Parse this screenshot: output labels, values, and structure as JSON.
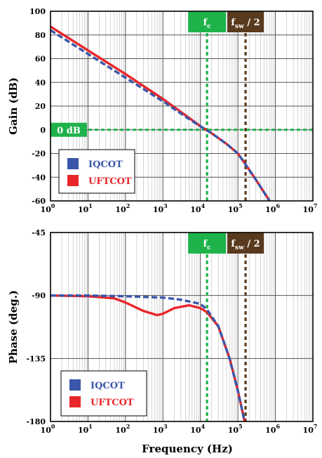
{
  "chart_data": [
    {
      "type": "line",
      "xlabel": "",
      "ylabel": "Gain (dB)",
      "xscale": "log",
      "xlim": [
        1,
        10000000
      ],
      "ylim": [
        -60,
        100
      ],
      "x_tick_bases": [
        "10",
        "10",
        "10",
        "10",
        "10",
        "10",
        "10",
        "10"
      ],
      "x_tick_exponents": [
        "0",
        "1",
        "2",
        "3",
        "4",
        "5",
        "6",
        "7"
      ],
      "y_ticks": [
        "100",
        "80",
        "60",
        "40",
        "20",
        "0",
        "-20",
        "-40",
        "-60"
      ],
      "grid": true,
      "legend": "bottom-left",
      "series": [
        {
          "name": "IQCOT",
          "color": "#3a56a8",
          "style": "dashed",
          "x": [
            1,
            10,
            100,
            1000,
            5000,
            10000,
            20000,
            50000,
            100000,
            150000,
            300000,
            700000
          ],
          "y": [
            84,
            64,
            44,
            24,
            9,
            3,
            -3,
            -12,
            -20,
            -28,
            -42,
            -60
          ]
        },
        {
          "name": "UFTCOT",
          "color": "#e8262a",
          "style": "solid",
          "x": [
            1,
            10,
            100,
            1000,
            5000,
            10000,
            20000,
            50000,
            100000,
            150000,
            300000,
            700000
          ],
          "y": [
            87,
            67,
            47,
            26,
            10,
            3,
            -3,
            -12,
            -20,
            -28,
            -42,
            -60
          ]
        }
      ],
      "reference_lines": [
        {
          "orientation": "horizontal",
          "y": 0,
          "label": "0 dB",
          "color": "#1fb24a"
        },
        {
          "orientation": "vertical",
          "x": 15000,
          "label_main": "f",
          "label_sub": "c",
          "label_tail": "",
          "color": "#1fb24a"
        },
        {
          "orientation": "vertical",
          "x": 160000,
          "label_main": "f",
          "label_sub": "sw",
          "label_tail": " / 2",
          "color": "#5a3a1e"
        }
      ]
    },
    {
      "type": "line",
      "xlabel": "Frequency (Hz)",
      "ylabel": "Phase (deg.)",
      "xscale": "log",
      "xlim": [
        1,
        10000000
      ],
      "ylim": [
        -180,
        -45
      ],
      "x_tick_bases": [
        "10",
        "10",
        "10",
        "10",
        "10",
        "10",
        "10",
        "10"
      ],
      "x_tick_exponents": [
        "0",
        "1",
        "2",
        "3",
        "4",
        "5",
        "6",
        "7"
      ],
      "y_ticks": [
        "-45",
        "-90",
        "-135",
        "-180"
      ],
      "grid": true,
      "legend": "bottom-left",
      "series": [
        {
          "name": "IQCOT",
          "color": "#3a56a8",
          "style": "dashed",
          "x": [
            1,
            10,
            100,
            1000,
            3000,
            10000,
            15000,
            30000,
            60000,
            100000,
            130000,
            150000
          ],
          "y": [
            -90,
            -90,
            -90.5,
            -91.5,
            -93,
            -96,
            -100,
            -112,
            -135,
            -158,
            -172,
            -180
          ]
        },
        {
          "name": "UFTCOT",
          "color": "#e8262a",
          "style": "solid",
          "x": [
            1,
            10,
            50,
            100,
            300,
            700,
            1000,
            2000,
            5000,
            10000,
            15000,
            30000,
            60000,
            100000,
            130000,
            150000
          ],
          "y": [
            -90,
            -90.5,
            -92,
            -95,
            -101,
            -104,
            -103,
            -99,
            -97,
            -99,
            -102,
            -112,
            -135,
            -158,
            -172,
            -180
          ]
        }
      ],
      "reference_lines": [
        {
          "orientation": "vertical",
          "x": 15000,
          "label_main": "f",
          "label_sub": "c",
          "label_tail": "",
          "color": "#1fb24a"
        },
        {
          "orientation": "vertical",
          "x": 160000,
          "label_main": "f",
          "label_sub": "sw",
          "label_tail": " / 2",
          "color": "#5a3a1e"
        }
      ]
    }
  ]
}
